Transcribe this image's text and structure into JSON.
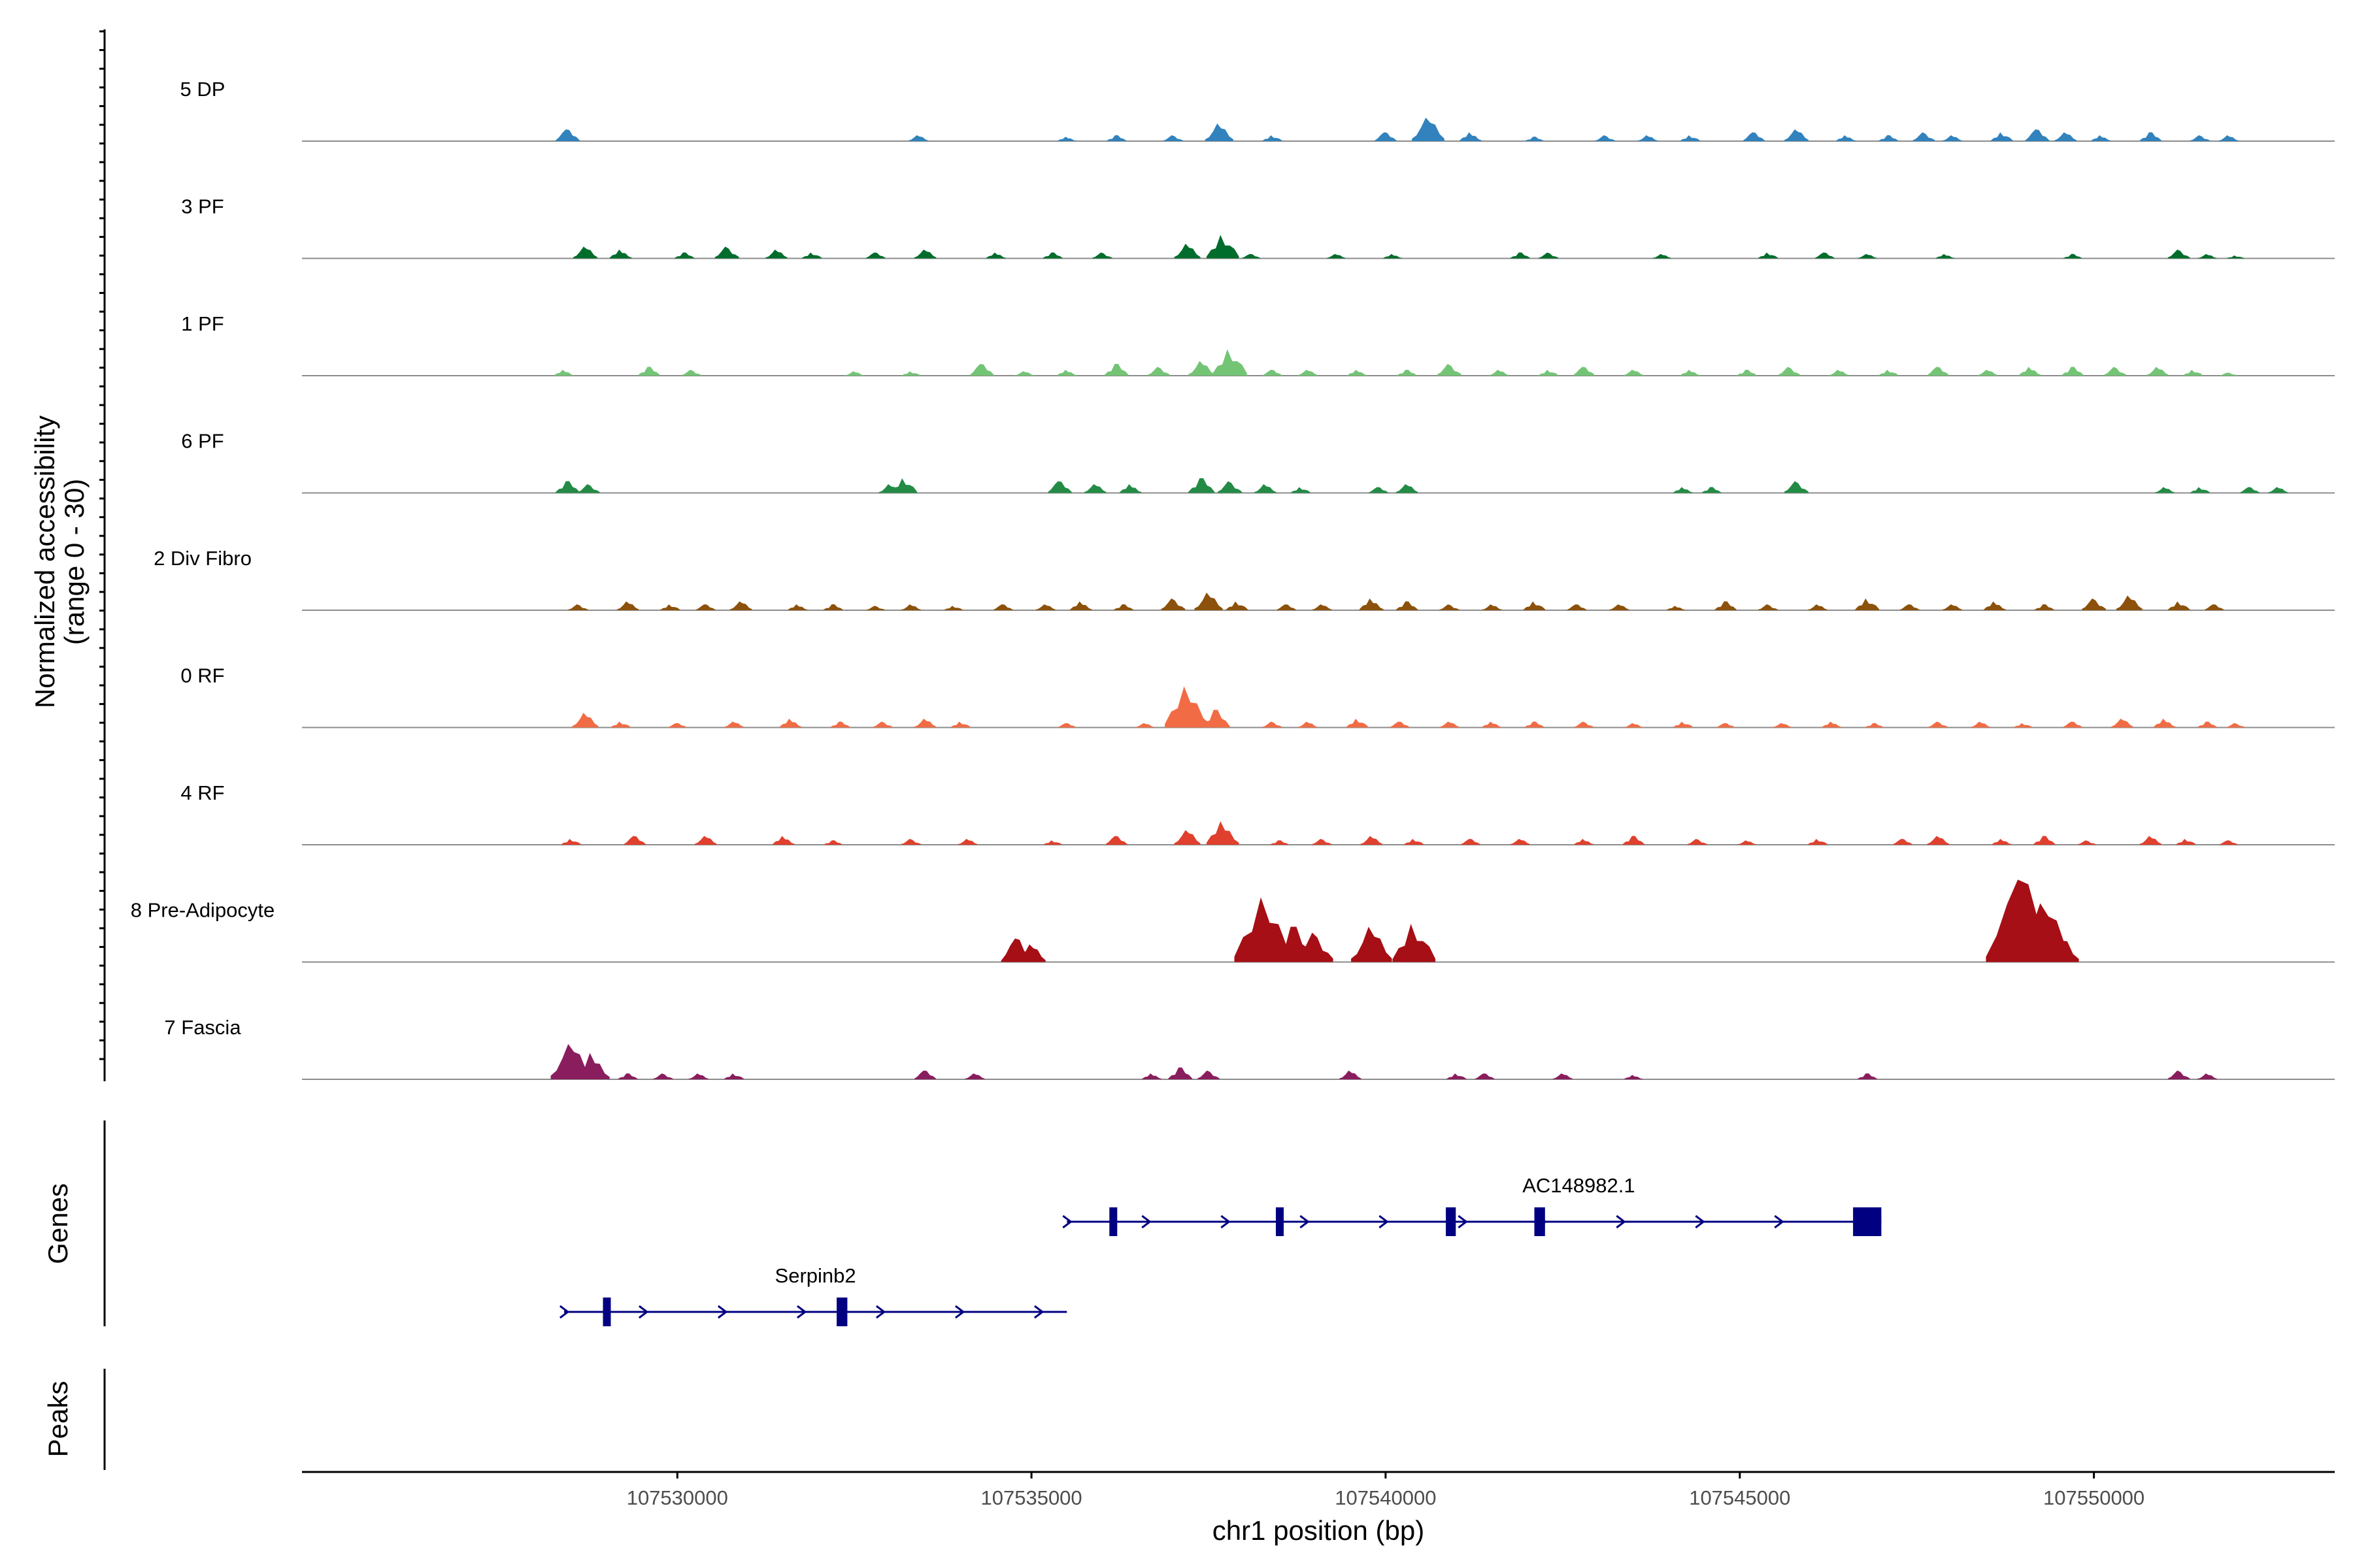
{
  "chart_data": {
    "type": "area",
    "title": "",
    "xlabel": "chr1 position (bp)",
    "coverage_ylabel": [
      "Normalized accessibility",
      "(range 0 - 30)"
    ],
    "genes_ylabel": "Genes",
    "peaks_ylabel": "Peaks",
    "xlim": [
      107524700,
      107553400
    ],
    "ylim": [
      0,
      30
    ],
    "x_ticks": [
      107530000,
      107535000,
      107540000,
      107545000,
      107550000
    ],
    "x_tick_labels": [
      "107530000",
      "107535000",
      "107540000",
      "107545000",
      "107550000"
    ],
    "tracks": [
      {
        "name": "5 DP",
        "color": "#3182bd",
        "peaks": [
          [
            107528450,
            4
          ],
          [
            107533400,
            2
          ],
          [
            107535500,
            1.5
          ],
          [
            107536200,
            2
          ],
          [
            107537000,
            2
          ],
          [
            107537650,
            6
          ],
          [
            107538400,
            2
          ],
          [
            107540000,
            3
          ],
          [
            107540600,
            8
          ],
          [
            107541200,
            3
          ],
          [
            107542100,
            1.5
          ],
          [
            107543100,
            2
          ],
          [
            107543700,
            2
          ],
          [
            107544300,
            2
          ],
          [
            107545200,
            3
          ],
          [
            107545800,
            4
          ],
          [
            107546500,
            2
          ],
          [
            107547100,
            2
          ],
          [
            107547600,
            3
          ],
          [
            107548000,
            2
          ],
          [
            107548700,
            3
          ],
          [
            107549200,
            4
          ],
          [
            107549600,
            3
          ],
          [
            107550100,
            2
          ],
          [
            107550800,
            3
          ],
          [
            107551500,
            2
          ],
          [
            107551900,
            2
          ]
        ]
      },
      {
        "name": "3 PF",
        "color": "#006d2c",
        "peaks": [
          [
            107528700,
            4
          ],
          [
            107529200,
            3
          ],
          [
            107530100,
            2
          ],
          [
            107530700,
            4
          ],
          [
            107531400,
            3
          ],
          [
            107531900,
            2
          ],
          [
            107532800,
            2
          ],
          [
            107533500,
            3
          ],
          [
            107534500,
            2
          ],
          [
            107535300,
            2
          ],
          [
            107536000,
            2
          ],
          [
            107537200,
            5
          ],
          [
            107537700,
            8
          ],
          [
            107538100,
            1.5
          ],
          [
            107539300,
            1.5
          ],
          [
            107540100,
            1.5
          ],
          [
            107541900,
            2
          ],
          [
            107542300,
            2
          ],
          [
            107543900,
            1.5
          ],
          [
            107545400,
            2
          ],
          [
            107546200,
            2
          ],
          [
            107546800,
            1.5
          ],
          [
            107547900,
            1.5
          ],
          [
            107549700,
            1.5
          ],
          [
            107551200,
            3
          ],
          [
            107551600,
            1.5
          ],
          [
            107552000,
            1
          ]
        ]
      },
      {
        "name": "1 PF",
        "color": "#74c476",
        "peaks": [
          [
            107528400,
            2
          ],
          [
            107529600,
            3
          ],
          [
            107530200,
            2
          ],
          [
            107532500,
            1.5
          ],
          [
            107533300,
            1.5
          ],
          [
            107534300,
            4
          ],
          [
            107534900,
            1.5
          ],
          [
            107535500,
            2
          ],
          [
            107536200,
            4
          ],
          [
            107536800,
            3
          ],
          [
            107537400,
            5
          ],
          [
            107537800,
            9
          ],
          [
            107538400,
            2
          ],
          [
            107538900,
            2
          ],
          [
            107539600,
            2
          ],
          [
            107540300,
            2
          ],
          [
            107540900,
            4
          ],
          [
            107541600,
            2
          ],
          [
            107542300,
            2
          ],
          [
            107542800,
            3
          ],
          [
            107543500,
            2
          ],
          [
            107544300,
            2
          ],
          [
            107545100,
            2
          ],
          [
            107545700,
            3
          ],
          [
            107546400,
            2
          ],
          [
            107547100,
            2
          ],
          [
            107547800,
            3
          ],
          [
            107548500,
            2
          ],
          [
            107549100,
            3
          ],
          [
            107549700,
            3
          ],
          [
            107550300,
            3
          ],
          [
            107550900,
            3
          ],
          [
            107551400,
            2
          ],
          [
            107551900,
            1
          ]
        ]
      },
      {
        "name": "6 PF",
        "color": "#238b45",
        "peaks": [
          [
            107528450,
            4
          ],
          [
            107528750,
            3
          ],
          [
            107533000,
            3
          ],
          [
            107533200,
            5
          ],
          [
            107535400,
            4
          ],
          [
            107535900,
            3
          ],
          [
            107536400,
            3
          ],
          [
            107537400,
            5
          ],
          [
            107537800,
            4
          ],
          [
            107538300,
            3
          ],
          [
            107538800,
            2
          ],
          [
            107539900,
            2
          ],
          [
            107540300,
            3
          ],
          [
            107544200,
            2
          ],
          [
            107544600,
            2
          ],
          [
            107545800,
            4
          ],
          [
            107551000,
            2
          ],
          [
            107551500,
            2
          ],
          [
            107552200,
            2
          ],
          [
            107552600,
            2
          ]
        ]
      },
      {
        "name": "2 Div Fibro",
        "color": "#8c510a",
        "peaks": [
          [
            107528600,
            2
          ],
          [
            107529300,
            3
          ],
          [
            107529900,
            2
          ],
          [
            107530400,
            2
          ],
          [
            107530900,
            3
          ],
          [
            107531700,
            2
          ],
          [
            107532200,
            2
          ],
          [
            107532800,
            1.5
          ],
          [
            107533300,
            2
          ],
          [
            107533900,
            1.5
          ],
          [
            107534600,
            2
          ],
          [
            107535200,
            2
          ],
          [
            107535700,
            3
          ],
          [
            107536300,
            2
          ],
          [
            107537000,
            4
          ],
          [
            107537500,
            6
          ],
          [
            107537900,
            3
          ],
          [
            107538600,
            2
          ],
          [
            107539100,
            2
          ],
          [
            107539800,
            4
          ],
          [
            107540300,
            3
          ],
          [
            107540900,
            2
          ],
          [
            107541500,
            2
          ],
          [
            107542100,
            3
          ],
          [
            107542700,
            2
          ],
          [
            107543300,
            2
          ],
          [
            107544100,
            1.5
          ],
          [
            107544800,
            3
          ],
          [
            107545400,
            2
          ],
          [
            107546100,
            2
          ],
          [
            107546800,
            4
          ],
          [
            107547400,
            2
          ],
          [
            107548000,
            2
          ],
          [
            107548600,
            3
          ],
          [
            107549300,
            2
          ],
          [
            107550000,
            4
          ],
          [
            107550500,
            5
          ],
          [
            107551200,
            3
          ],
          [
            107551700,
            2
          ]
        ]
      },
      {
        "name": "0 RF",
        "color": "#f16c45",
        "peaks": [
          [
            107528700,
            5
          ],
          [
            107529200,
            2
          ],
          [
            107530000,
            1.5
          ],
          [
            107530800,
            2
          ],
          [
            107531600,
            3
          ],
          [
            107532300,
            2
          ],
          [
            107532900,
            2
          ],
          [
            107533500,
            3
          ],
          [
            107534000,
            2
          ],
          [
            107535500,
            1.5
          ],
          [
            107536600,
            1.5
          ],
          [
            107537200,
            14
          ],
          [
            107537600,
            6
          ],
          [
            107538400,
            2
          ],
          [
            107538900,
            2
          ],
          [
            107539600,
            3
          ],
          [
            107540200,
            2
          ],
          [
            107540900,
            2
          ],
          [
            107541500,
            2
          ],
          [
            107542100,
            2
          ],
          [
            107542800,
            2
          ],
          [
            107543500,
            1.5
          ],
          [
            107544200,
            2
          ],
          [
            107544800,
            1.5
          ],
          [
            107545600,
            1.5
          ],
          [
            107546300,
            2
          ],
          [
            107546900,
            1.5
          ],
          [
            107547800,
            2
          ],
          [
            107548400,
            2
          ],
          [
            107549000,
            1.5
          ],
          [
            107549700,
            2
          ],
          [
            107550400,
            3
          ],
          [
            107551000,
            3
          ],
          [
            107551600,
            2
          ],
          [
            107552000,
            1.5
          ]
        ]
      },
      {
        "name": "4 RF",
        "color": "#e0402e",
        "peaks": [
          [
            107528500,
            2
          ],
          [
            107529400,
            3
          ],
          [
            107530400,
            3
          ],
          [
            107531500,
            3
          ],
          [
            107532200,
            1.5
          ],
          [
            107533300,
            2
          ],
          [
            107534100,
            2
          ],
          [
            107535300,
            1.5
          ],
          [
            107536200,
            3
          ],
          [
            107537200,
            5
          ],
          [
            107537700,
            8
          ],
          [
            107538500,
            1.5
          ],
          [
            107539100,
            2
          ],
          [
            107539800,
            3
          ],
          [
            107540400,
            2
          ],
          [
            107541200,
            2
          ],
          [
            107541900,
            2
          ],
          [
            107542800,
            2
          ],
          [
            107543500,
            3
          ],
          [
            107544400,
            2
          ],
          [
            107545100,
            1.5
          ],
          [
            107546100,
            2
          ],
          [
            107547300,
            2
          ],
          [
            107547800,
            3
          ],
          [
            107548700,
            2
          ],
          [
            107549300,
            3
          ],
          [
            107549900,
            1.5
          ],
          [
            107550800,
            3
          ],
          [
            107551300,
            2
          ],
          [
            107551900,
            1.5
          ]
        ]
      },
      {
        "name": "8 Pre-Adipocyte",
        "color": "#a50f15",
        "peaks": [
          [
            107534800,
            8
          ],
          [
            107535000,
            6
          ],
          [
            107538300,
            22
          ],
          [
            107538700,
            12
          ],
          [
            107539000,
            10
          ],
          [
            107539800,
            12
          ],
          [
            107540400,
            13
          ],
          [
            107549000,
            28
          ],
          [
            107549300,
            20
          ],
          [
            107549500,
            12
          ]
        ]
      },
      {
        "name": "7 Fascia",
        "color": "#8a1d5e",
        "peaks": [
          [
            107528500,
            12
          ],
          [
            107528800,
            9
          ],
          [
            107529300,
            2
          ],
          [
            107529800,
            2
          ],
          [
            107530300,
            2
          ],
          [
            107530800,
            2
          ],
          [
            107533500,
            3
          ],
          [
            107534200,
            2
          ],
          [
            107536700,
            2
          ],
          [
            107537100,
            4
          ],
          [
            107537500,
            3
          ],
          [
            107539500,
            3
          ],
          [
            107541000,
            2
          ],
          [
            107541400,
            2
          ],
          [
            107542500,
            2
          ],
          [
            107543500,
            1.5
          ],
          [
            107546800,
            2
          ],
          [
            107551200,
            3
          ],
          [
            107551600,
            2
          ]
        ]
      }
    ],
    "genes": [
      {
        "name": "AC148982.1",
        "start": 107535500,
        "end": 107547000,
        "strand": "+",
        "row": 0,
        "color": "#000080",
        "exons": [
          [
            107536100,
            107536200
          ],
          [
            107538450,
            107538560
          ],
          [
            107540850,
            107540990
          ],
          [
            107542100,
            107542250
          ],
          [
            107546600,
            107547000
          ]
        ]
      },
      {
        "name": "Serpinb2",
        "start": 107528400,
        "end": 107535500,
        "strand": "+",
        "row": 1,
        "color": "#000080",
        "exons": [
          [
            107528950,
            107529050
          ],
          [
            107532250,
            107532400
          ]
        ]
      }
    ],
    "peaks_track": []
  }
}
